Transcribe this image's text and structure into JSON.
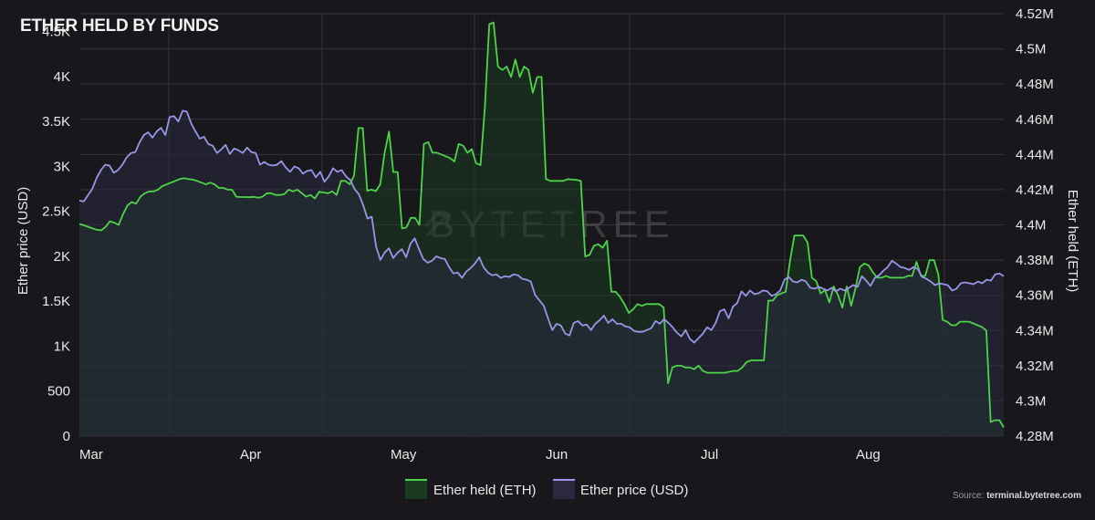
{
  "chart_data": {
    "type": "line",
    "title": "ETHER HELD BY FUNDS",
    "x_labels": [
      "Mar",
      "Apr",
      "May",
      "Jun",
      "Jul",
      "Aug"
    ],
    "y_left": {
      "label": "Ether price (USD)",
      "min": 0,
      "max": 4700,
      "ticks": [
        "0",
        "500",
        "1K",
        "1.5K",
        "2K",
        "2.5K",
        "3K",
        "3.5K",
        "4K",
        "4.5K"
      ]
    },
    "y_right": {
      "label": "Ether held (ETH)",
      "min": 4280000,
      "max": 4520000,
      "ticks": [
        "4.28M",
        "4.3M",
        "4.32M",
        "4.34M",
        "4.36M",
        "4.38M",
        "4.4M",
        "4.42M",
        "4.44M",
        "4.46M",
        "4.48M",
        "4.5M",
        "4.52M"
      ]
    },
    "grid": true,
    "legend_position": "bottom-center",
    "series": [
      {
        "name": "Ether held (ETH)",
        "axis": "right",
        "color": "#4fd34a",
        "fill": "#1c3a22",
        "values": [
          4400500,
          4399800,
          4398900,
          4398000,
          4397200,
          4396900,
          4398800,
          4402000,
          4401300,
          4400000,
          4406000,
          4411000,
          4413000,
          4412000,
          4416000,
          4418000,
          4419000,
          4419000,
          4420000,
          4422000,
          4423000,
          4424000,
          4425000,
          4426000,
          4426500,
          4426000,
          4425700,
          4425000,
          4424000,
          4423000,
          4424000,
          4423000,
          4421000,
          4421000,
          4420000,
          4420000,
          4416000,
          4415800,
          4415800,
          4415700,
          4415900,
          4415400,
          4416000,
          4418000,
          4418000,
          4417000,
          4417000,
          4417500,
          4420000,
          4419000,
          4420000,
          4418000,
          4416000,
          4417000,
          4415000,
          4418800,
          4418400,
          4418000,
          4419000,
          4417000,
          4425000,
          4425000,
          4423000,
          4428000,
          4455000,
          4455000,
          4419400,
          4420000,
          4419200,
          4423000,
          4441000,
          4453000,
          4430000,
          4430000,
          4398000,
          4398500,
          4404000,
          4404000,
          4400000,
          4446000,
          4447000,
          4441000,
          4441000,
          4440000,
          4439000,
          4438000,
          4436000,
          4446000,
          4445000,
          4441000,
          4443000,
          4435000,
          4434000,
          4467000,
          4514000,
          4515000,
          4490000,
          4488000,
          4490000,
          4484000,
          4494000,
          4484000,
          4490000,
          4488000,
          4475000,
          4484000,
          4484000,
          4426000,
          4425000,
          4425000,
          4425000,
          4425000,
          4426000,
          4425700,
          4425600,
          4425000,
          4382000,
          4383000,
          4388000,
          4389000,
          4387000,
          4391000,
          4362000,
          4362000,
          4359000,
          4355000,
          4350000,
          4352000,
          4355000,
          4354000,
          4355000,
          4355000,
          4355000,
          4355000,
          4353000,
          4310000,
          4319000,
          4320000,
          4320000,
          4319000,
          4319000,
          4318000,
          4320000,
          4317000,
          4316000,
          4316000,
          4316000,
          4316000,
          4316000,
          4316500,
          4317000,
          4317000,
          4319000,
          4322000,
          4323000,
          4323000,
          4323000,
          4323000,
          4357000,
          4357000,
          4360000,
          4361000,
          4362000,
          4380000,
          4394000,
          4394000,
          4394000,
          4390000,
          4370000,
          4368000,
          4361000,
          4363000,
          4356000,
          4365000,
          4360000,
          4353000,
          4365000,
          4354000,
          4364000,
          4376000,
          4378000,
          4377000,
          4373000,
          4370000,
          4370000,
          4371000,
          4370000,
          4370000,
          4370000,
          4370000,
          4371000,
          4371000,
          4379000,
          4371000,
          4371000,
          4380000,
          4380000,
          4372000,
          4346000,
          4345000,
          4343000,
          4343000,
          4345000,
          4345000,
          4345000,
          4344000,
          4343000,
          4342000,
          4340000,
          4288000,
          4289000,
          4289000,
          4285000
        ]
      },
      {
        "name": "Ether price (USD)",
        "axis": "left",
        "color": "#9a95e6",
        "fill": "#2a2940",
        "values": [
          2620,
          2610,
          2680,
          2750,
          2870,
          2960,
          3020,
          3010,
          2930,
          2960,
          3020,
          3100,
          3150,
          3160,
          3270,
          3350,
          3380,
          3320,
          3390,
          3430,
          3350,
          3550,
          3560,
          3500,
          3620,
          3610,
          3480,
          3390,
          3310,
          3330,
          3250,
          3230,
          3150,
          3190,
          3240,
          3140,
          3200,
          3180,
          3150,
          3210,
          3160,
          3150,
          3020,
          3050,
          3020,
          3010,
          3020,
          3060,
          2990,
          2940,
          3000,
          2980,
          2920,
          2950,
          2960,
          2880,
          2940,
          2830,
          2890,
          2980,
          2940,
          2960,
          2890,
          2850,
          2750,
          2690,
          2570,
          2420,
          2440,
          2110,
          1960,
          2040,
          2090,
          1980,
          2040,
          2080,
          1990,
          2140,
          2200,
          2080,
          1970,
          1930,
          1950,
          2000,
          1980,
          1970,
          1880,
          1810,
          1820,
          1760,
          1830,
          1870,
          1920,
          1990,
          1880,
          1820,
          1790,
          1800,
          1760,
          1780,
          1770,
          1800,
          1790,
          1750,
          1740,
          1720,
          1570,
          1510,
          1450,
          1310,
          1180,
          1250,
          1230,
          1140,
          1120,
          1260,
          1280,
          1230,
          1240,
          1180,
          1250,
          1290,
          1340,
          1260,
          1300,
          1250,
          1250,
          1220,
          1210,
          1170,
          1160,
          1160,
          1180,
          1200,
          1280,
          1250,
          1300,
          1260,
          1210,
          1150,
          1110,
          1180,
          1080,
          1040,
          1090,
          1140,
          1210,
          1180,
          1260,
          1390,
          1410,
          1310,
          1440,
          1480,
          1610,
          1560,
          1620,
          1580,
          1590,
          1620,
          1610,
          1560,
          1580,
          1620,
          1740,
          1770,
          1720,
          1710,
          1740,
          1720,
          1650,
          1640,
          1660,
          1640,
          1620,
          1650,
          1610,
          1640,
          1620,
          1650,
          1680,
          1660,
          1780,
          1730,
          1670,
          1760,
          1790,
          1840,
          1880,
          1950,
          1920,
          1880,
          1870,
          1850,
          1880,
          1860,
          1770,
          1750,
          1720,
          1680,
          1700,
          1690,
          1680,
          1620,
          1640,
          1700,
          1710,
          1700,
          1690,
          1720,
          1700,
          1740,
          1730,
          1800,
          1810,
          1780
        ]
      }
    ]
  },
  "watermark": "BYTETREE",
  "source": {
    "prefix": "Source: ",
    "site": "terminal.bytetree.com"
  }
}
